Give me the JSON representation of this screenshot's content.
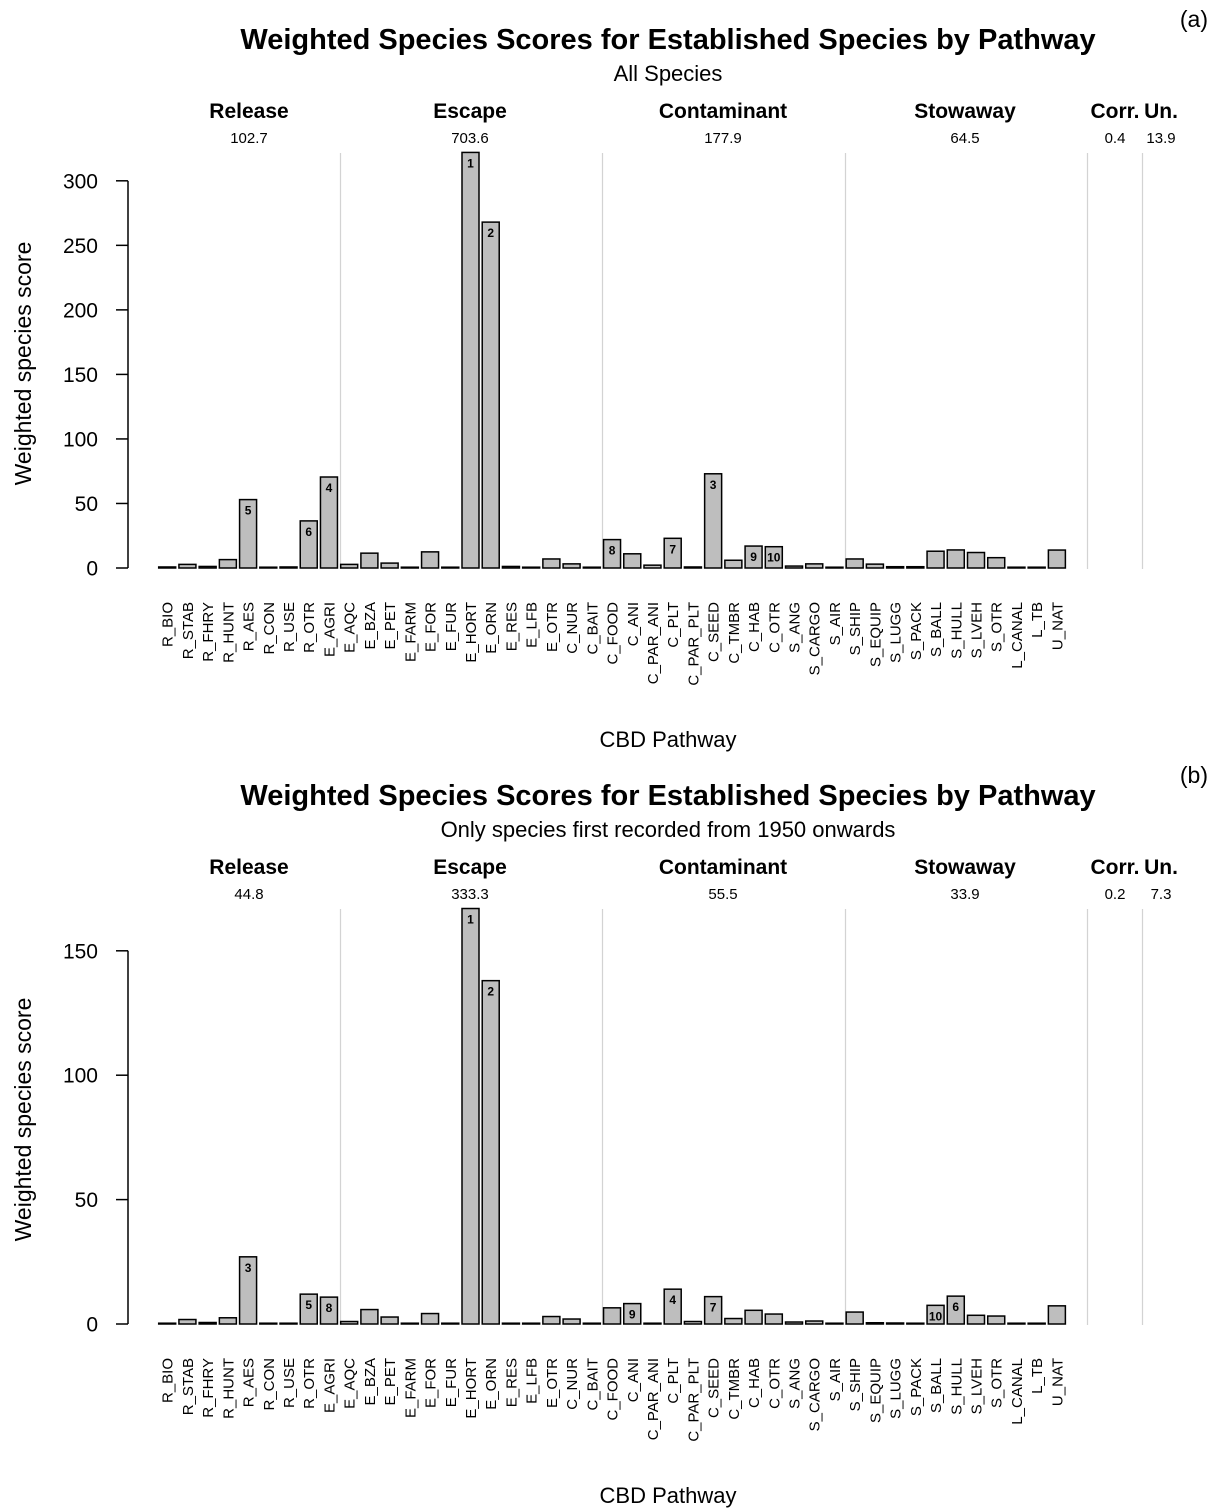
{
  "categories": [
    "R_BIO",
    "R_STAB",
    "R_FHRY",
    "R_HUNT",
    "R_AES",
    "R_CON",
    "R_USE",
    "R_OTR",
    "E_AGRI",
    "E_AQC",
    "E_BZA",
    "E_PET",
    "E_FARM",
    "E_FOR",
    "E_FUR",
    "E_HORT",
    "E_ORN",
    "E_RES",
    "E_LFB",
    "E_OTR",
    "C_NUR",
    "C_BAIT",
    "C_FOOD",
    "C_ANI",
    "C_PAR_ANI",
    "C_PLT",
    "C_PAR_PLT",
    "C_SEED",
    "C_TMBR",
    "C_HAB",
    "C_OTR",
    "S_ANG",
    "S_CARGO",
    "S_AIR",
    "S_SHIP",
    "S_EQUIP",
    "S_LUGG",
    "S_PACK",
    "S_BALL",
    "S_HULL",
    "S_LVEH",
    "S_OTR",
    "L_CANAL",
    "L_TB",
    "U_NAT"
  ],
  "groups": [
    {
      "name": "Release",
      "start": 0,
      "end": 7
    },
    {
      "name": "Escape",
      "start": 8,
      "end": 19
    },
    {
      "name": "Contaminant",
      "start": 20,
      "end": 30
    },
    {
      "name": "Stowaway",
      "start": 31,
      "end": 41
    },
    {
      "name": "Corr.",
      "start": 42,
      "end": 43
    },
    {
      "name": "Un.",
      "start": 44,
      "end": 44
    }
  ],
  "chart_data": [
    {
      "type": "bar",
      "panel_label": "(a)",
      "title": "Weighted Species Scores for Established Species by Pathway",
      "subtitle": "All Species",
      "xlabel": "CBD Pathway",
      "ylabel": "Weighted species score",
      "ylim": [
        0,
        320
      ],
      "yticks": [
        0,
        50,
        100,
        150,
        200,
        250,
        300
      ],
      "group_totals": [
        "102.7",
        "703.6",
        "177.9",
        "64.5",
        "0.4",
        "13.9"
      ],
      "values": [
        0.8,
        2.8,
        1.2,
        6.5,
        53,
        0.2,
        0.8,
        36.5,
        70.5,
        2.8,
        11.5,
        3.8,
        0.5,
        12.5,
        0.5,
        322,
        268,
        1.2,
        0.2,
        7,
        3.2,
        0.3,
        22,
        11,
        2.2,
        23,
        0.8,
        73,
        6,
        17,
        16.5,
        1.5,
        3.2,
        0.3,
        7,
        3,
        1,
        1,
        13,
        14,
        12,
        8,
        0.3,
        0.2,
        13.9
      ],
      "ranks": {
        "15": "1",
        "16": "2",
        "27": "3",
        "8": "4",
        "4": "5",
        "7": "6",
        "25": "7",
        "22": "8",
        "29": "9",
        "30": "10"
      }
    },
    {
      "type": "bar",
      "panel_label": "(b)",
      "title": "Weighted Species Scores for Established Species by Pathway",
      "subtitle": "Only species first recorded from 1950 onwards",
      "xlabel": "CBD Pathway",
      "ylabel": "Weighted species score",
      "ylim": [
        0,
        166
      ],
      "yticks": [
        0,
        50,
        100,
        150
      ],
      "group_totals": [
        "44.8",
        "333.3",
        "55.5",
        "33.9",
        "0.2",
        "7.3"
      ],
      "values": [
        0.3,
        1.8,
        0.6,
        2.5,
        27,
        0.1,
        0.3,
        12,
        10.8,
        1,
        5.8,
        2.8,
        0.3,
        4.2,
        0.2,
        167,
        138,
        0.3,
        0.1,
        3,
        2,
        0.2,
        6.5,
        8.2,
        0.3,
        14,
        1,
        11,
        2.2,
        5.5,
        4,
        0.8,
        1.2,
        0.1,
        4.8,
        0.5,
        0.4,
        0.2,
        7.5,
        11.2,
        3.5,
        3.2,
        0.2,
        0.1,
        7.3
      ],
      "ranks": {
        "15": "1",
        "16": "2",
        "4": "3",
        "25": "4",
        "7": "5",
        "39": "6",
        "27": "7",
        "8": "8",
        "23": "9",
        "38": "10"
      }
    }
  ]
}
